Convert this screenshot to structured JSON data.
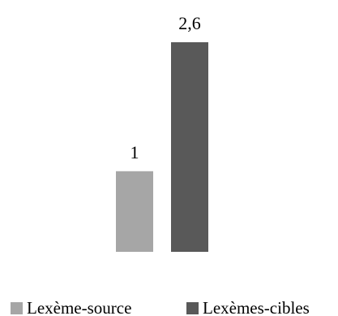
{
  "chart_data": {
    "type": "bar",
    "categories": [
      ""
    ],
    "series": [
      {
        "name": "Lexème-source",
        "values": [
          1
        ],
        "value_labels": [
          "1"
        ],
        "color": "#a6a6a6"
      },
      {
        "name": "Lexèmes-cibles",
        "values": [
          2.6
        ],
        "value_labels": [
          "2,6"
        ],
        "color": "#595959"
      }
    ],
    "title": "",
    "xlabel": "",
    "ylabel": "",
    "ylim": [
      0,
      2.6
    ],
    "grid": false,
    "legend": "bottom"
  }
}
